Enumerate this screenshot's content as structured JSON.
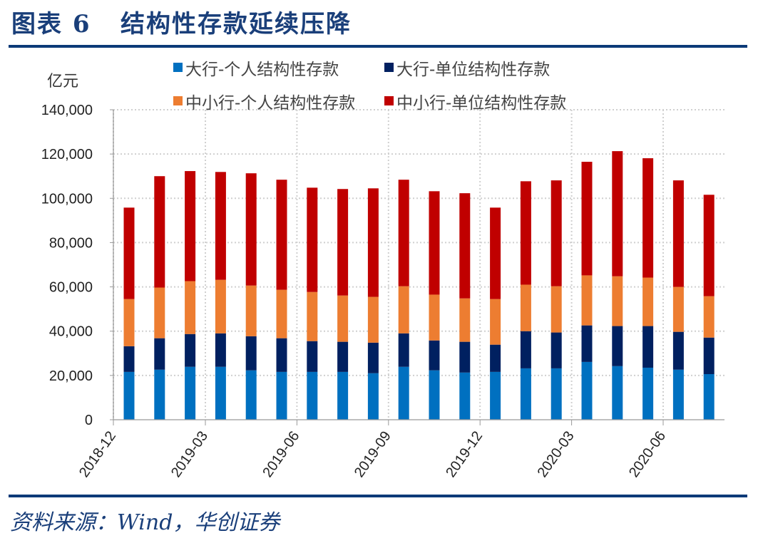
{
  "figure": {
    "title": "图表 6   结构性存款延续压降",
    "source": "资料来源：Wind，华创证券"
  },
  "chart_data": {
    "type": "bar",
    "stacked": true,
    "title": "结构性存款延续压降",
    "xlabel": "",
    "ylabel": "亿元",
    "ylim": [
      0,
      140000
    ],
    "yticks": [
      0,
      20000,
      40000,
      60000,
      80000,
      100000,
      120000,
      140000
    ],
    "ytick_labels": [
      "0",
      "20,000",
      "40,000",
      "60,000",
      "80,000",
      "100,000",
      "120,000",
      "140,000"
    ],
    "grid": true,
    "legend_position": "top",
    "categories": [
      "2018-12",
      "2019-01",
      "2019-02",
      "2019-03",
      "2019-04",
      "2019-05",
      "2019-06",
      "2019-07",
      "2019-08",
      "2019-09",
      "2019-10",
      "2019-11",
      "2019-12",
      "2020-01",
      "2020-02",
      "2020-03",
      "2020-04",
      "2020-05",
      "2020-06",
      "2020-07"
    ],
    "xtick_labels": [
      "2018-12",
      "2019-03",
      "2019-06",
      "2019-09",
      "2019-12",
      "2020-03",
      "2020-06"
    ],
    "series": [
      {
        "name": "大行-个人结构性存款",
        "color": "#0070c0",
        "values": [
          21600,
          22600,
          23900,
          23900,
          22300,
          21600,
          21600,
          21600,
          21000,
          23900,
          22300,
          21300,
          21600,
          23200,
          23200,
          26100,
          24200,
          23500,
          22600,
          20600
        ]
      },
      {
        "name": "大行-单位结构性存款",
        "color": "#002060",
        "values": [
          11600,
          14200,
          14800,
          15100,
          15400,
          15200,
          13900,
          13600,
          13800,
          15100,
          13500,
          13900,
          12300,
          16800,
          16200,
          16500,
          18100,
          18800,
          17100,
          16500
        ]
      },
      {
        "name": "中小行-个人结构性存款",
        "color": "#ed7d31",
        "values": [
          21300,
          22900,
          23900,
          24200,
          22900,
          21900,
          22200,
          20900,
          20700,
          21300,
          20700,
          19600,
          20600,
          21000,
          20900,
          22600,
          22500,
          21900,
          20300,
          18700
        ]
      },
      {
        "name": "中小行-单位结构性存款",
        "color": "#c00000",
        "values": [
          41300,
          50300,
          49700,
          48700,
          50700,
          49700,
          47100,
          48100,
          49000,
          48100,
          46700,
          47500,
          41300,
          46700,
          47800,
          51300,
          56500,
          53900,
          48100,
          45800
        ]
      }
    ]
  }
}
